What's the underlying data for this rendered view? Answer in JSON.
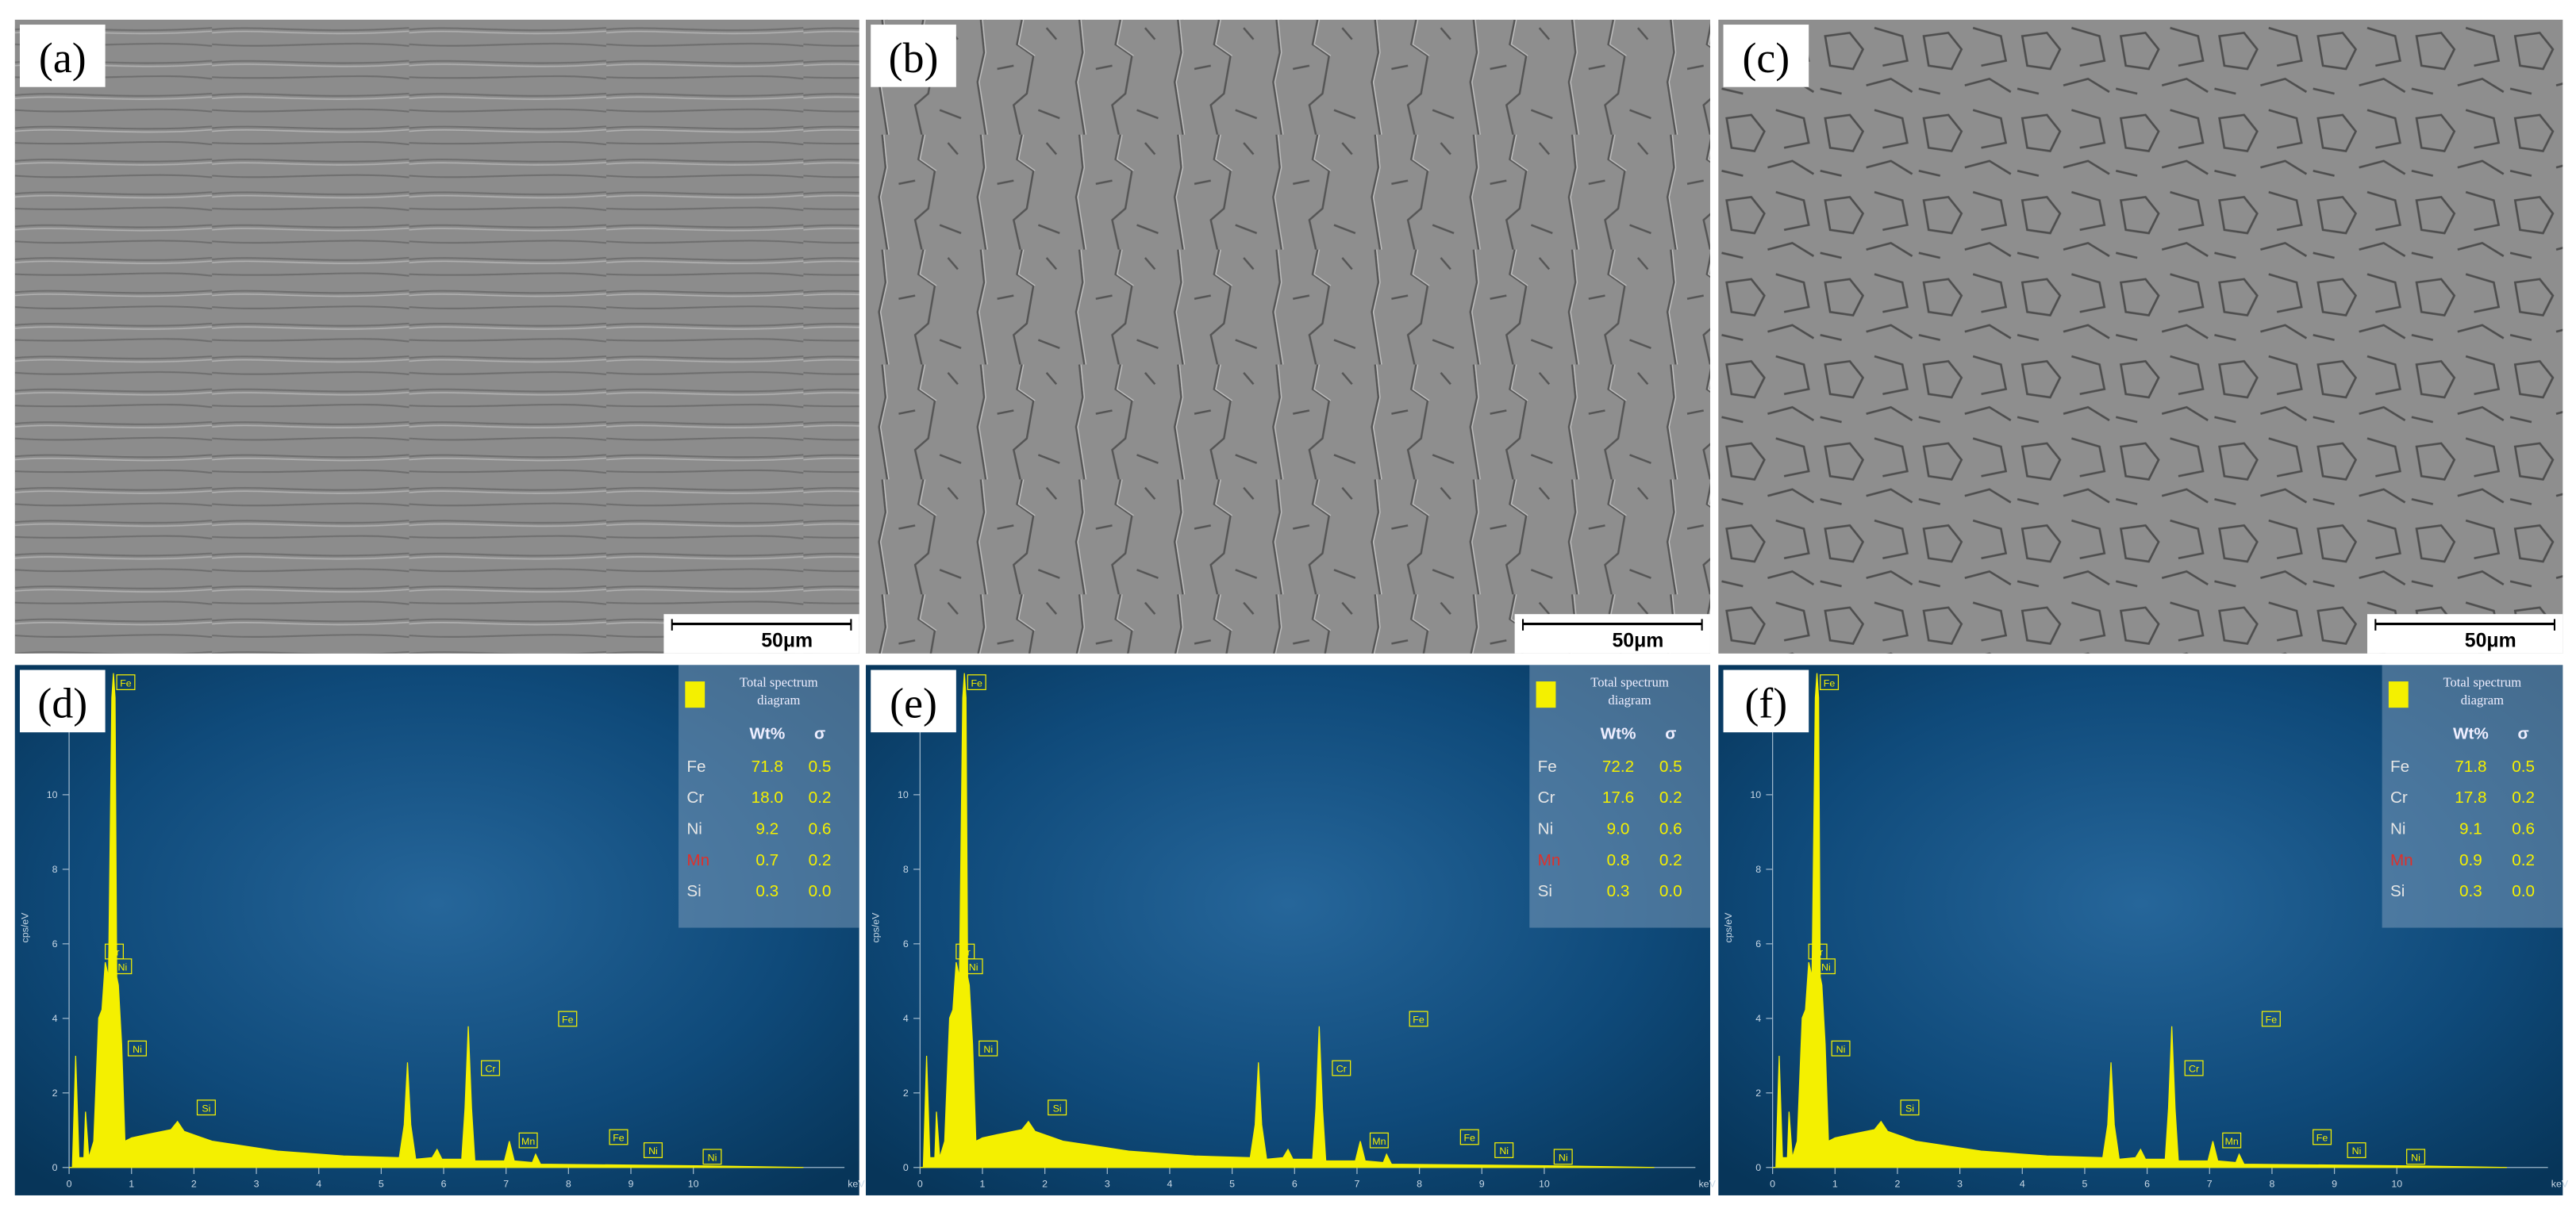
{
  "panels": [
    {
      "label": "(a)",
      "scale_bar": "50μm"
    },
    {
      "label": "(b)",
      "scale_bar": "50μm"
    },
    {
      "label": "(c)",
      "scale_bar": "50μm"
    }
  ],
  "spectra": [
    {
      "label": "(d)",
      "legend": [
        "Total spectrum",
        "diagram"
      ],
      "columns": [
        "Wt%",
        "σ"
      ],
      "rows": [
        [
          "Fe",
          "71.8",
          "0.5"
        ],
        [
          "Cr",
          "18.0",
          "0.2"
        ],
        [
          "Ni",
          "9.2",
          "0.6"
        ],
        [
          "Mn",
          "0.7",
          "0.2"
        ],
        [
          "Si",
          "0.3",
          "0.0"
        ]
      ],
      "peak_labels": [
        "Fe",
        "Cr",
        "Ni",
        "Ni",
        "Si",
        "Cr",
        "Mn",
        "Fe",
        "Fe",
        "Ni",
        "Ni"
      ],
      "xticks": [
        0,
        1,
        2,
        3,
        4,
        5,
        6,
        7,
        8,
        9,
        10
      ],
      "yticks": [
        0,
        2,
        4,
        6,
        8,
        10
      ],
      "y_label": "cps/eV",
      "x_unit": "keV"
    },
    {
      "label": "(e)",
      "legend": [
        "Total spectrum",
        "diagram"
      ],
      "columns": [
        "Wt%",
        "σ"
      ],
      "rows": [
        [
          "Fe",
          "72.2",
          "0.5"
        ],
        [
          "Cr",
          "17.6",
          "0.2"
        ],
        [
          "Ni",
          "9.0",
          "0.6"
        ],
        [
          "Mn",
          "0.8",
          "0.2"
        ],
        [
          "Si",
          "0.3",
          "0.0"
        ]
      ],
      "peak_labels": [
        "Fe",
        "Cr",
        "Ni",
        "Ni",
        "Si",
        "Cr",
        "Mn",
        "Fe",
        "Fe",
        "Ni",
        "Ni"
      ],
      "xticks": [
        0,
        1,
        2,
        3,
        4,
        5,
        6,
        7,
        8,
        9,
        10
      ],
      "yticks": [
        0,
        2,
        4,
        6,
        8,
        10
      ],
      "y_label": "cps/eV",
      "x_unit": "keV"
    },
    {
      "label": "(f)",
      "legend": [
        "Total spectrum",
        "diagram"
      ],
      "columns": [
        "Wt%",
        "σ"
      ],
      "rows": [
        [
          "Fe",
          "71.8",
          "0.5"
        ],
        [
          "Cr",
          "17.8",
          "0.2"
        ],
        [
          "Ni",
          "9.1",
          "0.6"
        ],
        [
          "Mn",
          "0.9",
          "0.2"
        ],
        [
          "Si",
          "0.3",
          "0.0"
        ]
      ],
      "peak_labels": [
        "Fe",
        "Cr",
        "Ni",
        "Ni",
        "Si",
        "Cr",
        "Mn",
        "Fe",
        "Fe",
        "Ni",
        "Ni"
      ],
      "xticks": [
        0,
        1,
        2,
        3,
        4,
        5,
        6,
        7,
        8,
        9,
        10
      ],
      "yticks": [
        0,
        2,
        4,
        6,
        8,
        10
      ],
      "y_label": "cps/eV",
      "x_unit": "keV"
    }
  ]
}
